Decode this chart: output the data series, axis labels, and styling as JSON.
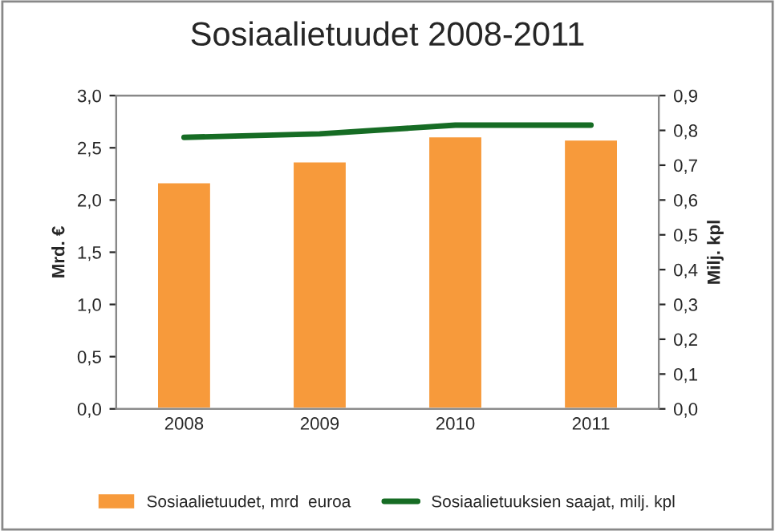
{
  "chart_data": {
    "type": "bar",
    "title": "Sosiaalietuudet 2008-2011",
    "ylabel": "Mrd. €",
    "y2label": "Milj. kpl",
    "categories": [
      "2008",
      "2009",
      "2010",
      "2011"
    ],
    "series": [
      {
        "name": "Sosiaalietuudet, mrd  euroa",
        "color": "#f79a3b",
        "values": [
          2.17,
          2.37,
          2.61,
          2.58
        ]
      },
      {
        "name": "Sosiaalietuuksien saajat, milj. kpl",
        "type": "line",
        "axis": "y2",
        "color": "#166c24",
        "values": [
          0.78,
          0.79,
          0.815,
          0.815
        ]
      }
    ],
    "ylim": [
      0,
      3
    ],
    "yticks": [
      {
        "value": 0,
        "label": "0,0"
      },
      {
        "value": 0.5,
        "label": "0,5"
      },
      {
        "value": 1,
        "label": "1,0"
      },
      {
        "value": 1.5,
        "label": "1,5"
      },
      {
        "value": 2,
        "label": "2,0"
      },
      {
        "value": 2.5,
        "label": "2,5"
      },
      {
        "value": 3,
        "label": "3,0"
      }
    ],
    "y2lim": [
      0,
      0.9
    ],
    "y2ticks": [
      {
        "value": 0,
        "label": "0,0"
      },
      {
        "value": 0.1,
        "label": "0,1"
      },
      {
        "value": 0.2,
        "label": "0,2"
      },
      {
        "value": 0.3,
        "label": "0,3"
      },
      {
        "value": 0.4,
        "label": "0,4"
      },
      {
        "value": 0.5,
        "label": "0,5"
      },
      {
        "value": 0.6,
        "label": "0,6"
      },
      {
        "value": 0.7,
        "label": "0,7"
      },
      {
        "value": 0.8,
        "label": "0,8"
      },
      {
        "value": 0.9,
        "label": "0,9"
      }
    ],
    "legend": "bottom",
    "marker": "none"
  }
}
